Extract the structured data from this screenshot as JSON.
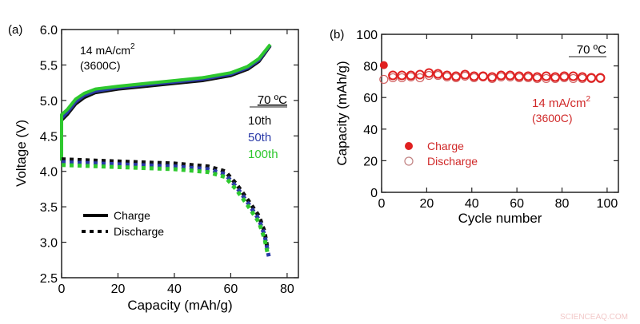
{
  "watermark": "SCIENCEAQ.COM",
  "chart_data": [
    {
      "panel_label": "(a)",
      "type": "line",
      "xlabel": "Capacity (mAh/g)",
      "ylabel": "Voltage (V)",
      "xlim": [
        0,
        84
      ],
      "ylim": [
        2.5,
        6.0
      ],
      "xticks": [
        0,
        20,
        40,
        60,
        80
      ],
      "yticks": [
        2.5,
        3.0,
        3.5,
        4.0,
        4.5,
        5.0,
        5.5,
        6.0
      ],
      "ytick_labels": [
        "2.5",
        "3.0",
        "3.5",
        "4.0",
        "4.5",
        "5.0",
        "5.5",
        "6.0"
      ],
      "annotation_rate": "14 mA/cm",
      "annotation_rate_sup": "2",
      "annotation_c": "(3600C)",
      "temperature": "70 ºC",
      "cycle_legend": [
        {
          "name": "10th",
          "color": "#111111"
        },
        {
          "name": "50th",
          "color": "#2a3aa8"
        },
        {
          "name": "100th",
          "color": "#2ec82e"
        }
      ],
      "style_legend": [
        {
          "name": "Charge",
          "style": "solid"
        },
        {
          "name": "Discharge",
          "style": "dotted"
        }
      ],
      "series": [
        {
          "name": "10th charge",
          "color": "#111111",
          "style": "solid",
          "points": [
            [
              0,
              4.72
            ],
            [
              2,
              4.8
            ],
            [
              5,
              4.95
            ],
            [
              8,
              5.04
            ],
            [
              12,
              5.11
            ],
            [
              20,
              5.16
            ],
            [
              30,
              5.2
            ],
            [
              40,
              5.24
            ],
            [
              50,
              5.28
            ],
            [
              60,
              5.35
            ],
            [
              66,
              5.44
            ],
            [
              70,
              5.55
            ],
            [
              74,
              5.77
            ]
          ]
        },
        {
          "name": "50th charge",
          "color": "#2a3aa8",
          "style": "solid",
          "points": [
            [
              0,
              4.3
            ],
            [
              0,
              4.75
            ],
            [
              2,
              4.83
            ],
            [
              5,
              4.98
            ],
            [
              8,
              5.07
            ],
            [
              12,
              5.13
            ],
            [
              20,
              5.18
            ],
            [
              30,
              5.22
            ],
            [
              40,
              5.26
            ],
            [
              50,
              5.3
            ],
            [
              60,
              5.37
            ],
            [
              66,
              5.46
            ],
            [
              70,
              5.57
            ],
            [
              74,
              5.78
            ]
          ]
        },
        {
          "name": "100th charge",
          "color": "#2ec82e",
          "style": "solid",
          "points": [
            [
              0,
              4.15
            ],
            [
              0,
              4.8
            ],
            [
              2,
              4.87
            ],
            [
              5,
              5.02
            ],
            [
              8,
              5.1
            ],
            [
              12,
              5.16
            ],
            [
              20,
              5.2
            ],
            [
              30,
              5.24
            ],
            [
              40,
              5.28
            ],
            [
              50,
              5.32
            ],
            [
              60,
              5.39
            ],
            [
              66,
              5.48
            ],
            [
              70,
              5.59
            ],
            [
              74,
              5.79
            ]
          ]
        },
        {
          "name": "10th discharge",
          "color": "#111111",
          "style": "dotted",
          "points": [
            [
              0,
              4.17
            ],
            [
              20,
              4.14
            ],
            [
              40,
              4.11
            ],
            [
              52,
              4.07
            ],
            [
              58,
              4.0
            ],
            [
              62,
              3.82
            ],
            [
              66,
              3.6
            ],
            [
              70,
              3.37
            ],
            [
              72,
              3.15
            ],
            [
              73,
              2.92
            ]
          ]
        },
        {
          "name": "50th discharge",
          "color": "#2a3aa8",
          "style": "dotted",
          "points": [
            [
              0,
              4.13
            ],
            [
              20,
              4.1
            ],
            [
              40,
              4.07
            ],
            [
              52,
              4.03
            ],
            [
              58,
              3.96
            ],
            [
              62,
              3.78
            ],
            [
              66,
              3.56
            ],
            [
              70,
              3.32
            ],
            [
              72,
              3.1
            ],
            [
              73.5,
              2.8
            ]
          ]
        },
        {
          "name": "100th discharge",
          "color": "#2ec82e",
          "style": "dotted",
          "points": [
            [
              0,
              4.09
            ],
            [
              20,
              4.06
            ],
            [
              40,
              4.03
            ],
            [
              52,
              3.99
            ],
            [
              58,
              3.92
            ],
            [
              62,
              3.74
            ],
            [
              66,
              3.52
            ],
            [
              70,
              3.28
            ],
            [
              72,
              3.05
            ],
            [
              73,
              2.86
            ]
          ]
        }
      ]
    },
    {
      "panel_label": "(b)",
      "type": "scatter",
      "xlabel": "Cycle number",
      "ylabel": "Capacity (mAh/g)",
      "xlim": [
        0,
        105
      ],
      "ylim": [
        0,
        100
      ],
      "xticks": [
        0,
        20,
        40,
        60,
        80,
        100
      ],
      "yticks": [
        0,
        20,
        40,
        60,
        80,
        100
      ],
      "temperature": "70 ºC",
      "annotation_rate": "14 mA/cm",
      "annotation_rate_sup": "2",
      "annotation_c": "(3600C)",
      "series": [
        {
          "name": "Charge",
          "marker": "filled-circle",
          "color": "#e02020",
          "x": [
            1,
            5,
            9,
            13,
            17,
            21,
            25,
            29,
            33,
            37,
            41,
            45,
            49,
            53,
            57,
            61,
            65,
            69,
            73,
            77,
            81,
            85,
            89,
            93,
            97
          ],
          "y": [
            80.5,
            74,
            74,
            74,
            74.5,
            75.5,
            75,
            74,
            73.5,
            74.5,
            73.5,
            73.5,
            73,
            74,
            74,
            73.5,
            73.5,
            73,
            73.5,
            73,
            73.5,
            73.5,
            73,
            72.5,
            72.5
          ]
        },
        {
          "name": "Discharge",
          "marker": "open-circle",
          "color": "#d06060",
          "x": [
            1,
            5,
            9,
            13,
            17,
            21,
            25,
            29,
            33,
            37,
            41,
            45,
            49,
            53,
            57,
            61,
            65,
            69,
            73,
            77,
            81,
            85,
            89,
            93,
            97
          ],
          "y": [
            71.5,
            72.5,
            72.5,
            73,
            72.5,
            74,
            74,
            73,
            72.5,
            73.5,
            72.5,
            73,
            72,
            73,
            73,
            72.5,
            72.5,
            72,
            72,
            72,
            72.5,
            72,
            72,
            72,
            72
          ]
        }
      ]
    }
  ]
}
